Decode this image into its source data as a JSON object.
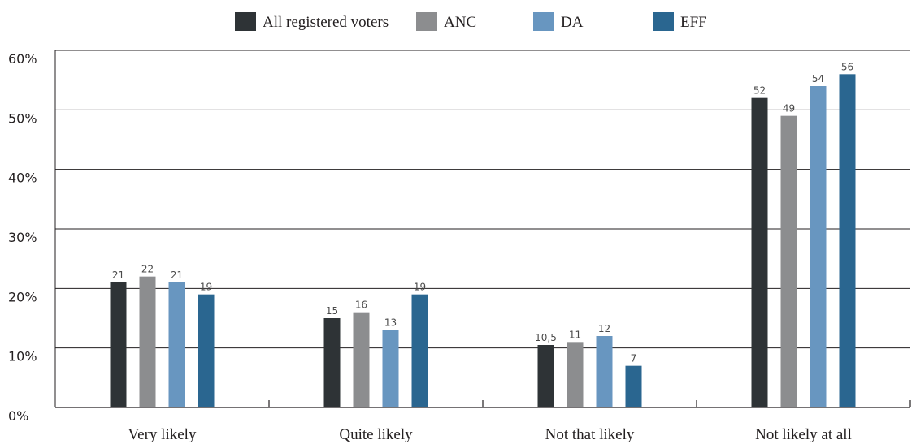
{
  "chart_data": {
    "type": "bar",
    "categories": [
      "Very likely",
      "Quite likely",
      "Not that likely",
      "Not likely at all"
    ],
    "series": [
      {
        "name": "All registered voters",
        "color": "#2e3336",
        "values": [
          21,
          15,
          10.5,
          52
        ],
        "labels": [
          "21",
          "15",
          "10,5",
          "52"
        ]
      },
      {
        "name": "ANC",
        "color": "#8c8d8f",
        "values": [
          22,
          16,
          11,
          49
        ],
        "labels": [
          "22",
          "16",
          "11",
          "49"
        ]
      },
      {
        "name": "DA",
        "color": "#6896c0",
        "values": [
          21,
          13,
          12,
          54
        ],
        "labels": [
          "21",
          "13",
          "12",
          "54"
        ]
      },
      {
        "name": "EFF",
        "color": "#2a6690",
        "values": [
          19,
          19,
          7,
          56
        ],
        "labels": [
          "19",
          "19",
          "7",
          "56"
        ]
      }
    ],
    "y_ticks": [
      "0%",
      "10%",
      "20%",
      "30%",
      "40%",
      "50%",
      "60%"
    ],
    "ylim": [
      0,
      60
    ],
    "grid": true,
    "legend_position": "top-center",
    "title": "",
    "xlabel": "",
    "ylabel": ""
  }
}
